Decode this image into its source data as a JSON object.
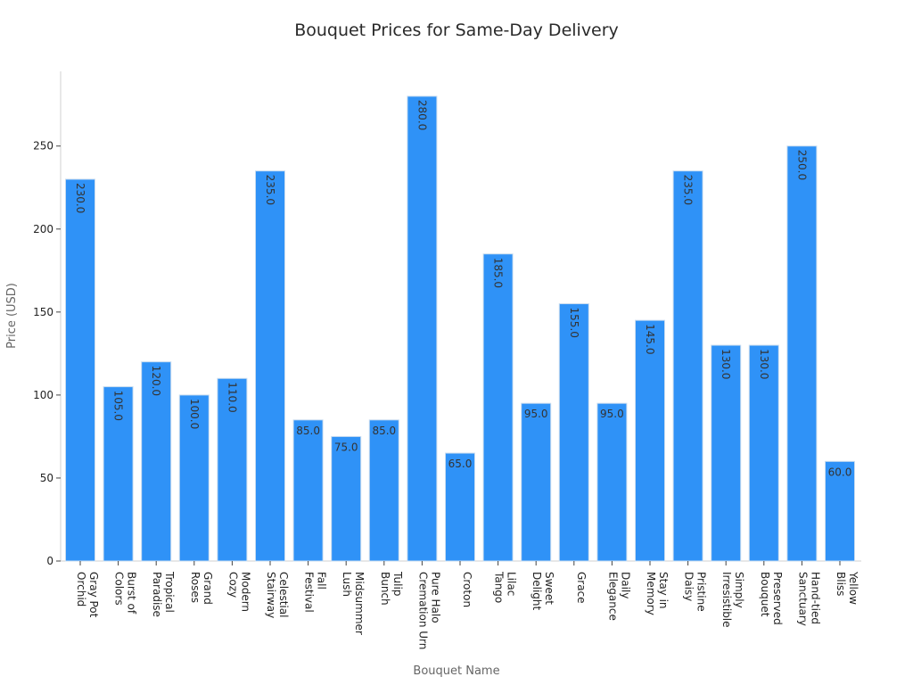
{
  "chart_data": {
    "type": "bar",
    "title": "Bouquet Prices for Same-Day Delivery",
    "xlabel": "Bouquet Name",
    "ylabel": "Price (USD)",
    "ylim": [
      0,
      295
    ],
    "yticks": [
      0,
      50,
      100,
      150,
      200,
      250
    ],
    "grid": false,
    "bar_color": "#2f92f7",
    "bar_edge_color": "#c9dcef",
    "categories": [
      "Gray Pot\nOrchid",
      "Burst of\nColors",
      "Tropical\nParadise",
      "Grand\nRoses",
      "Modern\nCozy",
      "Celestial\nStairway",
      "Fall\nFestival",
      "Midsummer\nLush",
      "Tulip\nBunch",
      "Pure Halo\nCremation Urn",
      "Croton",
      "Lilac\nTango",
      "Sweet\nDelight",
      "Grace",
      "Daily\nElegance",
      "Stay in\nMemory",
      "Pristine\nDaisy",
      "Simply\nIrresistible",
      "Preserved\nBouquet",
      "Hand-tied\nSanctuary",
      "Yellow\nBliss"
    ],
    "values": [
      230,
      105,
      120,
      100,
      110,
      235,
      85,
      75,
      85,
      280,
      65,
      185,
      95,
      155,
      95,
      145,
      235,
      130,
      130,
      250,
      60
    ],
    "data_labels": [
      "230.0",
      "105.0",
      "120.0",
      "100.0",
      "110.0",
      "235.0",
      "85.0",
      "75.0",
      "85.0",
      "280.0",
      "65.0",
      "185.0",
      "95.0",
      "155.0",
      "95.0",
      "145.0",
      "235.0",
      "130.0",
      "130.0",
      "250.0",
      "60.0"
    ]
  }
}
